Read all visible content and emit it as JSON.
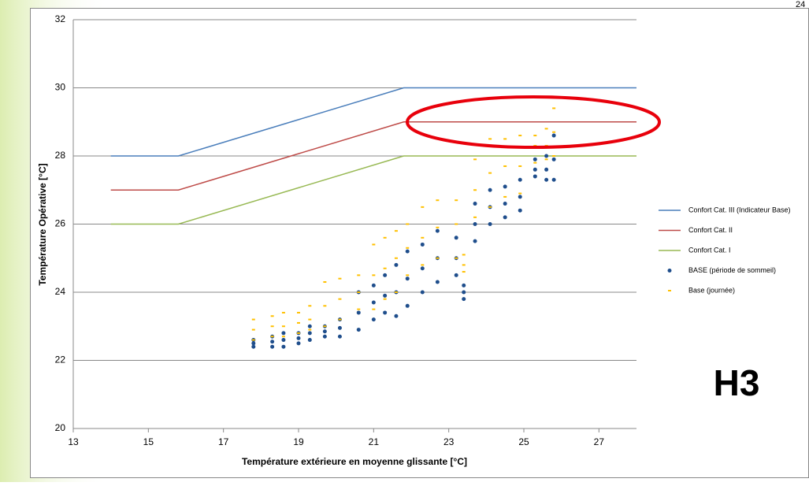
{
  "chart_data": {
    "type": "scatter",
    "xlabel": "Température extérieure en moyenne glissante [°C]",
    "ylabel": "Température Opérative [°C]",
    "xlim": [
      13,
      28
    ],
    "xticks": [
      13,
      15,
      17,
      19,
      21,
      23,
      25,
      27
    ],
    "ylim": [
      20,
      32
    ],
    "yticks": [
      20,
      22,
      24,
      26,
      28,
      30,
      32
    ],
    "grid": true,
    "legend": "right",
    "annotation": "H3",
    "page_number": "24",
    "series": [
      {
        "name": "Confort Cat. III (Indicateur Base)",
        "color": "#4a7ebb",
        "marker": "line",
        "x": [
          14,
          15.8,
          21.8,
          28
        ],
        "values": [
          28,
          28,
          30,
          30
        ]
      },
      {
        "name": "Confort Cat. II",
        "color": "#be4b48",
        "marker": "line",
        "x": [
          14,
          15.8,
          21.8,
          28
        ],
        "values": [
          27,
          27,
          29,
          29
        ]
      },
      {
        "name": "Confort Cat. I",
        "color": "#98b954",
        "marker": "line",
        "x": [
          14,
          15.8,
          21.8,
          28
        ],
        "values": [
          26,
          26,
          28,
          28
        ]
      },
      {
        "name": "BASE (période de sommeil)",
        "color": "#1f4e8c",
        "marker": "circle",
        "x": [
          17.8,
          17.8,
          17.8,
          18.3,
          18.3,
          18.3,
          18.6,
          18.6,
          18.6,
          19,
          19,
          19,
          19.3,
          19.3,
          19.3,
          19.7,
          19.7,
          19.7,
          20.1,
          20.1,
          20.1,
          20.6,
          20.6,
          20.6,
          21,
          21,
          21,
          21.3,
          21.3,
          21.3,
          21.6,
          21.6,
          21.6,
          21.9,
          21.9,
          21.9,
          22.3,
          22.3,
          22.3,
          22.7,
          22.7,
          22.7,
          23.2,
          23.2,
          23.2,
          23.4,
          23.4,
          23.4,
          23.7,
          23.7,
          23.7,
          24.1,
          24.1,
          24.1,
          24.5,
          24.5,
          24.5,
          24.9,
          24.9,
          24.9,
          25.3,
          25.3,
          25.3,
          25.6,
          25.6,
          25.6,
          25.8,
          25.8,
          25.8
        ],
        "values": [
          22.4,
          22.5,
          22.6,
          22.4,
          22.55,
          22.7,
          22.4,
          22.6,
          22.8,
          22.5,
          22.65,
          22.8,
          22.6,
          22.8,
          23,
          22.7,
          22.85,
          23,
          22.7,
          22.95,
          23.2,
          22.9,
          23.4,
          24,
          23.2,
          23.7,
          24.2,
          23.4,
          23.9,
          24.5,
          23.3,
          24,
          24.8,
          23.6,
          24.4,
          25.2,
          24,
          24.7,
          25.4,
          24.3,
          25,
          25.8,
          24.5,
          25,
          25.6,
          23.8,
          24,
          24.2,
          25.5,
          26,
          26.6,
          26,
          26.5,
          27,
          26.2,
          26.6,
          27.1,
          26.4,
          26.8,
          27.3,
          27.4,
          27.6,
          27.9,
          27.3,
          27.6,
          28,
          27.3,
          27.9,
          28.6
        ]
      },
      {
        "name": "Base (journée)",
        "color": "#ffc000",
        "marker": "dash",
        "x": [
          17.8,
          17.8,
          17.8,
          18.3,
          18.3,
          18.3,
          18.6,
          18.6,
          18.6,
          19,
          19,
          19,
          19.3,
          19.3,
          19.3,
          19.7,
          19.7,
          19.7,
          20.1,
          20.1,
          20.1,
          20.6,
          20.6,
          20.6,
          21,
          21,
          21,
          21.3,
          21.3,
          21.3,
          21.6,
          21.6,
          21.6,
          21.9,
          21.9,
          21.9,
          22.3,
          22.3,
          22.3,
          22.7,
          22.7,
          22.7,
          23.2,
          23.2,
          23.2,
          23.4,
          23.4,
          23.4,
          23.7,
          23.7,
          23.7,
          24.1,
          24.1,
          24.1,
          24.5,
          24.5,
          24.5,
          24.9,
          24.9,
          24.9,
          25.3,
          25.3,
          25.3,
          25.6,
          25.6,
          25.6,
          25.8,
          25.8,
          25.8
        ],
        "values": [
          22.6,
          22.9,
          23.2,
          22.7,
          23,
          23.3,
          22.7,
          23,
          23.4,
          22.8,
          23.1,
          23.4,
          22.9,
          23.2,
          23.6,
          23,
          23.6,
          24.3,
          23.2,
          23.8,
          24.4,
          23.5,
          24,
          24.5,
          23.5,
          24.5,
          25.4,
          23.8,
          24.7,
          25.6,
          24,
          25,
          25.8,
          24.5,
          25.3,
          26,
          24.8,
          25.6,
          26.5,
          25,
          25.9,
          26.7,
          25,
          26,
          26.7,
          24.6,
          24.8,
          25.1,
          26.2,
          27,
          27.9,
          26.5,
          27.5,
          28.5,
          26.8,
          27.7,
          28.5,
          26.9,
          27.7,
          28.6,
          27.8,
          28.3,
          28.6,
          27.9,
          28.3,
          28.8,
          28,
          28.7,
          29.4
        ]
      }
    ]
  }
}
